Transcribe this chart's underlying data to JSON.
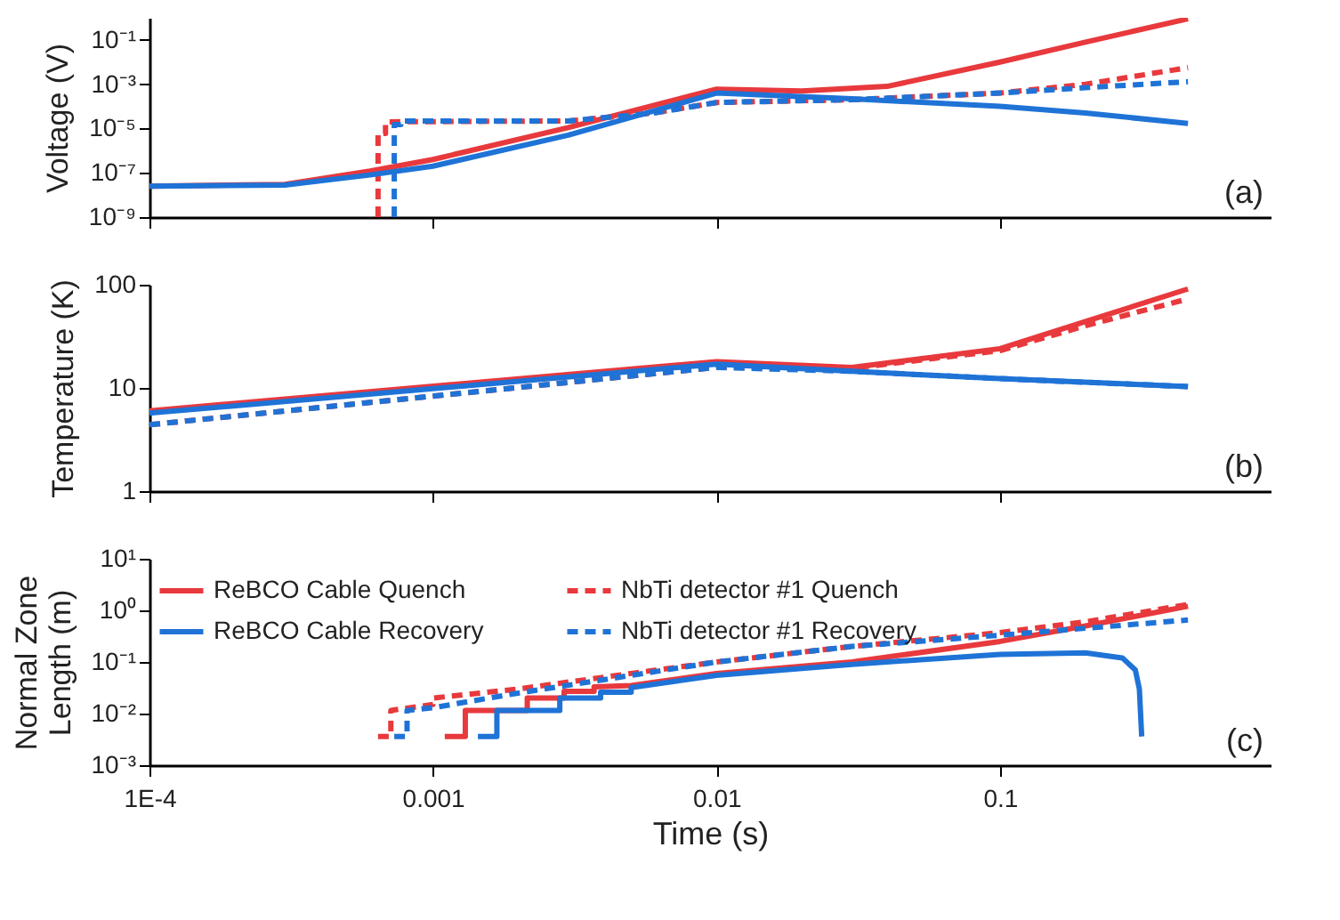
{
  "chart_data": [
    {
      "type": "line",
      "ylabel": "Voltage (V)",
      "log": "xy",
      "xlim": [
        0.0001,
        0.9
      ],
      "xticks": [
        {
          "value": 0.0001,
          "label": null
        },
        {
          "value": 0.001,
          "label": null
        },
        {
          "value": 0.01,
          "label": null
        },
        {
          "value": 0.1,
          "label": null
        }
      ],
      "ylim": [
        1e-09,
        1
      ],
      "yticks": [
        {
          "value": 1e-09,
          "label": "10⁻⁹"
        },
        {
          "value": 1e-07,
          "label": "10⁻⁷"
        },
        {
          "value": 1e-05,
          "label": "10⁻⁵"
        },
        {
          "value": 0.001,
          "label": "10⁻³"
        },
        {
          "value": 0.1,
          "label": "10⁻¹"
        }
      ],
      "tick_labels": "y",
      "annotations": [
        "(a)"
      ],
      "series": [
        {
          "color": "#e8393d",
          "line_style": "solid",
          "x": [
            0.0001,
            0.0003,
            0.0006,
            0.001,
            0.003,
            0.01,
            0.02,
            0.04,
            0.1,
            0.2,
            0.46
          ],
          "values": [
            2.5e-08,
            3e-08,
            1.2e-07,
            4e-07,
            1.1e-05,
            0.0006,
            0.0005,
            0.0008,
            0.01,
            0.08,
            0.9
          ]
        },
        {
          "color": "#e8393d",
          "line_style": "dashed",
          "x": [
            0.00064,
            0.00064,
            0.00068,
            0.00068,
            0.003,
            0.006,
            0.01,
            0.03,
            0.1,
            0.2,
            0.46
          ],
          "values": [
            1e-09,
            6e-06,
            6e-06,
            2e-05,
            2.2e-05,
            5e-05,
            0.00015,
            0.0002,
            0.0004,
            0.001,
            0.0056
          ]
        },
        {
          "color": "#1f73d6",
          "line_style": "solid",
          "x": [
            0.0001,
            0.0003,
            0.0006,
            0.001,
            0.003,
            0.01,
            0.03,
            0.1,
            0.2,
            0.46
          ],
          "values": [
            2.5e-08,
            2.8e-08,
            8e-08,
            2e-07,
            5e-06,
            0.0004,
            0.00022,
            0.0001,
            5e-05,
            1.7e-05
          ]
        },
        {
          "color": "#1f73d6",
          "line_style": "dashed",
          "x": [
            0.00073,
            0.00073,
            0.00077,
            0.00077,
            0.003,
            0.006,
            0.01,
            0.03,
            0.1,
            0.2,
            0.46
          ],
          "values": [
            1e-09,
            1.5e-05,
            1.5e-05,
            2.2e-05,
            2.2e-05,
            5e-05,
            0.00015,
            0.0002,
            0.0004,
            0.0007,
            0.0013
          ]
        }
      ]
    },
    {
      "type": "line",
      "ylabel": "Temperature (K)",
      "log": "xy",
      "xlim": [
        0.0001,
        0.9
      ],
      "xticks": [
        {
          "value": 0.0001,
          "label": null
        },
        {
          "value": 0.001,
          "label": null
        },
        {
          "value": 0.01,
          "label": null
        },
        {
          "value": 0.1,
          "label": null
        }
      ],
      "ylim": [
        1,
        100
      ],
      "yticks": [
        1,
        10,
        100
      ],
      "tick_labels": "y",
      "annotations": [
        "(b)"
      ],
      "series": [
        {
          "color": "#e8393d",
          "line_style": "solid",
          "x": [
            0.0001,
            0.01,
            0.03,
            0.1,
            0.2,
            0.46
          ],
          "values": [
            6,
            18,
            15.8,
            24,
            44,
            91
          ]
        },
        {
          "color": "#e8393d",
          "line_style": "dashed",
          "x": [
            0.0001,
            0.01,
            0.03,
            0.1,
            0.2,
            0.46
          ],
          "values": [
            4.4,
            15.8,
            15.5,
            23,
            40,
            73
          ]
        },
        {
          "color": "#1f73d6",
          "line_style": "solid",
          "x": [
            0.0001,
            0.01,
            0.03,
            0.1,
            0.46
          ],
          "values": [
            5.7,
            17,
            14.5,
            12.3,
            10.3
          ]
        },
        {
          "color": "#1f73d6",
          "line_style": "dashed",
          "x": [
            0.0001,
            0.01,
            0.03,
            0.1,
            0.46
          ],
          "values": [
            4.4,
            15.8,
            14.5,
            12.3,
            10.3
          ]
        }
      ]
    },
    {
      "type": "line",
      "ylabel": "Normal Zone Length (m)",
      "xlabel": "Time (s)",
      "log": "xy",
      "xlim": [
        0.0001,
        0.9
      ],
      "xticks": [
        {
          "value": 0.0001,
          "label": "1E-4"
        },
        0.001,
        0.01,
        0.1
      ],
      "ylim": [
        0.001,
        10
      ],
      "yticks": [
        {
          "value": 0.001,
          "label": "10⁻³"
        },
        {
          "value": 0.01,
          "label": "10⁻²"
        },
        {
          "value": 0.1,
          "label": "10⁻¹"
        },
        {
          "value": 1,
          "label": "10⁰"
        },
        {
          "value": 10,
          "label": "10¹"
        }
      ],
      "legend": "top left",
      "annotations": [
        "(c)"
      ],
      "series": [
        {
          "name": "ReBCO Cable Quench",
          "color": "#e8393d",
          "line_style": "solid",
          "x": [
            0.0011,
            0.0013,
            0.0013,
            0.00215,
            0.00215,
            0.0029,
            0.0029,
            0.0037,
            0.0037,
            0.005,
            0.01,
            0.03,
            0.1,
            0.2,
            0.46
          ],
          "values": [
            0.0036,
            0.0036,
            0.0115,
            0.0115,
            0.02,
            0.02,
            0.027,
            0.027,
            0.033,
            0.035,
            0.06,
            0.1,
            0.25,
            0.5,
            1.2
          ]
        },
        {
          "name": "ReBCO Cable Recovery",
          "color": "#1f73d6",
          "line_style": "solid",
          "x": [
            0.00144,
            0.00168,
            0.00168,
            0.0028,
            0.0028,
            0.0039,
            0.0039,
            0.005,
            0.005,
            0.01,
            0.03,
            0.1,
            0.2,
            0.27,
            0.3,
            0.31,
            0.316
          ],
          "values": [
            0.0036,
            0.0036,
            0.0115,
            0.0115,
            0.02,
            0.02,
            0.026,
            0.026,
            0.032,
            0.055,
            0.09,
            0.14,
            0.15,
            0.12,
            0.07,
            0.03,
            0.0036
          ]
        },
        {
          "name": "NbTi detector #1 Quench",
          "color": "#e8393d",
          "line_style": "dashed",
          "x": [
            0.00064,
            0.00071,
            0.00071,
            0.001,
            0.001,
            0.002,
            0.005,
            0.01,
            0.03,
            0.1,
            0.2,
            0.46
          ],
          "values": [
            0.0036,
            0.0036,
            0.0115,
            0.015,
            0.02,
            0.03,
            0.06,
            0.1,
            0.2,
            0.37,
            0.6,
            1.3
          ]
        },
        {
          "name": "NbTi detector #1 Recovery",
          "color": "#1f73d6",
          "line_style": "dashed",
          "x": [
            0.00073,
            0.00081,
            0.00081,
            0.001,
            0.002,
            0.005,
            0.01,
            0.03,
            0.1,
            0.2,
            0.46
          ],
          "values": [
            0.0036,
            0.0036,
            0.0115,
            0.013,
            0.025,
            0.055,
            0.1,
            0.2,
            0.33,
            0.45,
            0.65
          ]
        }
      ]
    }
  ]
}
